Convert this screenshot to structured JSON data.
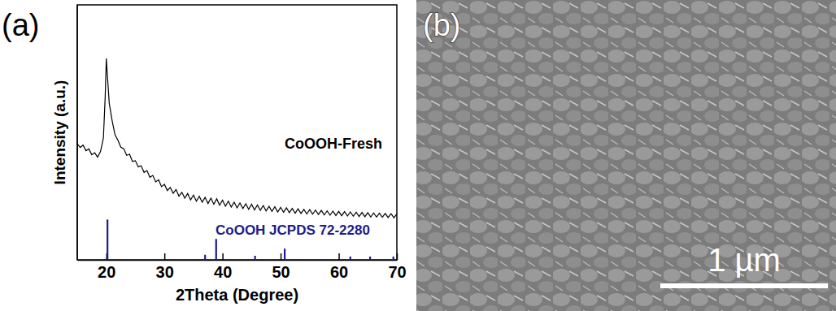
{
  "chart_data": {
    "type": "line",
    "panel_label": "(a)",
    "x_label": "2Theta (Degree)",
    "y_label": "Intensity (a.u.)",
    "xlim": [
      15,
      70
    ],
    "xticks": [
      20,
      30,
      40,
      50,
      60,
      70
    ],
    "ylim": [
      0,
      100
    ],
    "tick_labels": "x",
    "series": [
      {
        "name": "CoOOH-Fresh",
        "type": "line",
        "color": "#000000",
        "x": [
          15,
          15.5,
          16,
          16.5,
          17,
          17.5,
          18,
          18.5,
          19,
          19.5,
          19.8,
          20,
          20.2,
          20.5,
          21,
          21.5,
          22,
          22.5,
          23,
          23.5,
          24,
          24.5,
          25,
          25.5,
          26,
          26.5,
          27,
          27.5,
          28,
          28.5,
          29,
          29.5,
          30,
          30.5,
          31,
          31.5,
          32,
          32.5,
          33,
          33.5,
          34,
          34.5,
          35,
          35.5,
          36,
          36.5,
          37,
          37.5,
          38,
          38.5,
          39,
          39.5,
          40,
          40.5,
          41,
          41.5,
          42,
          42.5,
          43,
          43.5,
          44,
          44.5,
          45,
          45.5,
          46,
          46.5,
          47,
          47.5,
          48,
          48.5,
          49,
          49.5,
          50,
          50.5,
          51,
          51.5,
          52,
          52.5,
          53,
          53.5,
          54,
          54.5,
          55,
          55.5,
          56,
          56.5,
          57,
          57.5,
          58,
          58.5,
          59,
          59.5,
          60,
          60.5,
          61,
          61.5,
          62,
          62.5,
          63,
          63.5,
          64,
          64.5,
          65,
          65.5,
          66,
          66.5,
          67,
          67.5,
          68,
          68.5,
          69,
          69.5,
          70
        ],
        "values": [
          45.6,
          44.1,
          45.0,
          42.8,
          43.5,
          41.2,
          42.0,
          40.3,
          42.5,
          47.8,
          63.5,
          79.0,
          71.8,
          61.5,
          54.6,
          49.0,
          46.9,
          44.2,
          43.6,
          41.0,
          41.4,
          38.6,
          38.9,
          36.5,
          36.9,
          34.3,
          35.0,
          32.4,
          33.1,
          30.6,
          31.4,
          28.7,
          29.6,
          27.2,
          28.4,
          26.1,
          27.6,
          25.0,
          26.5,
          24.2,
          26.0,
          23.5,
          25.4,
          23.0,
          24.9,
          22.6,
          24.5,
          22.1,
          24.2,
          21.8,
          23.9,
          21.4,
          23.4,
          21.0,
          23.0,
          20.7,
          22.6,
          20.4,
          22.3,
          20.1,
          22.0,
          19.8,
          21.8,
          19.6,
          21.5,
          19.4,
          21.3,
          19.2,
          21.0,
          19.0,
          20.8,
          18.8,
          20.6,
          18.7,
          20.4,
          18.5,
          20.2,
          18.3,
          20.0,
          18.2,
          19.8,
          18.0,
          19.7,
          17.9,
          19.5,
          17.8,
          19.4,
          17.6,
          19.2,
          17.5,
          19.1,
          17.4,
          19.0,
          17.3,
          18.9,
          17.2,
          18.8,
          17.1,
          18.7,
          17.0,
          18.6,
          16.9,
          18.5,
          16.8,
          18.4,
          16.8,
          18.3,
          16.7,
          18.2,
          16.6,
          18.1,
          16.5,
          18.0
        ]
      },
      {
        "name": "CoOOH JCPDS 72-2280",
        "type": "stem",
        "color": "#1c1c8c",
        "x": [
          20.2,
          37.0,
          38.9,
          45.6,
          50.7,
          62.0,
          65.4,
          69.4
        ],
        "values": [
          15.8,
          2.0,
          8.2,
          1.6,
          4.4,
          1.3,
          1.3,
          1.3
        ]
      }
    ]
  },
  "image_panel": {
    "panel_label": "(b)",
    "scale_bar_label": "1 µm"
  }
}
